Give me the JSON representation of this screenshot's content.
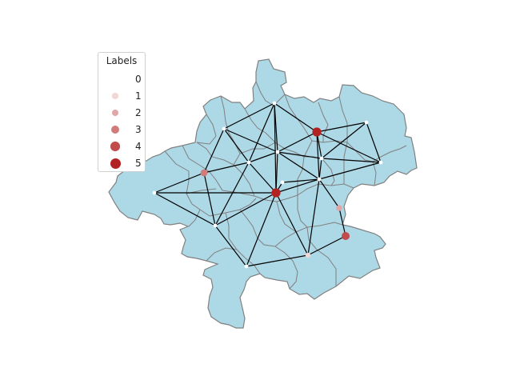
{
  "map": {
    "region_fill": "#add8e6",
    "border_color": "#808080",
    "edge_color": "#000000",
    "node_labels": [
      0,
      0,
      0,
      5,
      0,
      0,
      0,
      0,
      3,
      0,
      0,
      5,
      0,
      0,
      4,
      0,
      1,
      2
    ]
  },
  "legend": {
    "title": "Labels",
    "entries": [
      {
        "label": "0",
        "color": "#ffffff"
      },
      {
        "label": "1",
        "color": "#f1d6d6"
      },
      {
        "label": "2",
        "color": "#e0a5a5"
      },
      {
        "label": "3",
        "color": "#d17b7b"
      },
      {
        "label": "4",
        "color": "#c24b4b"
      },
      {
        "label": "5",
        "color": "#b22222"
      }
    ]
  }
}
